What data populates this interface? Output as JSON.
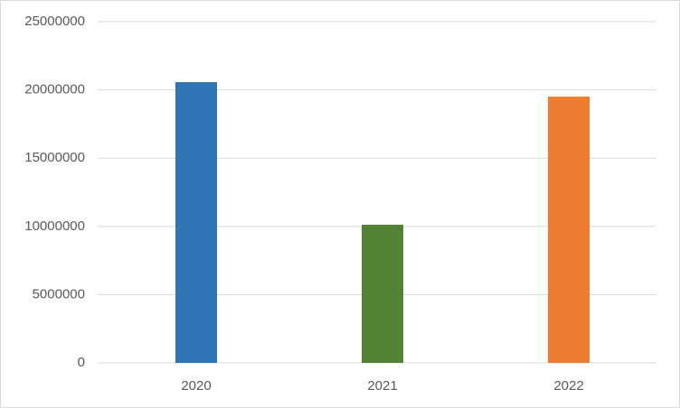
{
  "chart_data": {
    "type": "bar",
    "categories": [
      "2020",
      "2021",
      "2022"
    ],
    "values": [
      20570000,
      10120000,
      19510000
    ],
    "colors": [
      "#2e75b6",
      "#548235",
      "#ed7d31"
    ],
    "ylim": [
      0,
      25000000
    ],
    "yticks": [
      0,
      5000000,
      10000000,
      15000000,
      20000000,
      25000000
    ],
    "grid": true
  }
}
